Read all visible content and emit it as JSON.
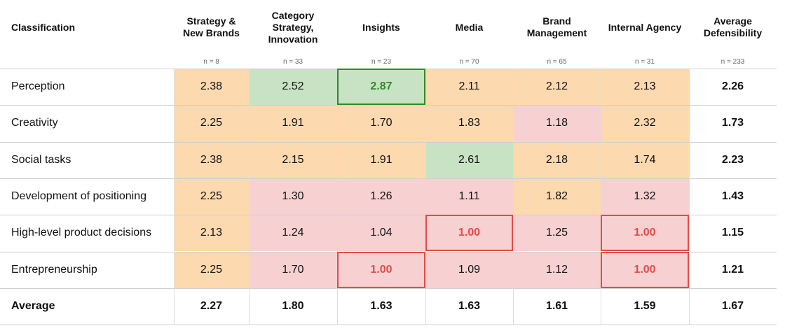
{
  "chart_data": {
    "type": "table",
    "corner_label": "Classification",
    "columns": [
      {
        "label": "Strategy &\nNew Brands",
        "n": "n = 8"
      },
      {
        "label": "Category\nStrategy,\nInnovation",
        "n": "n = 33"
      },
      {
        "label": "Insights",
        "n": "n = 23"
      },
      {
        "label": "Media",
        "n": "n = 70"
      },
      {
        "label": "Brand\nManagement",
        "n": "n = 65"
      },
      {
        "label": "Internal Agency",
        "n": "n = 31"
      },
      {
        "label": "Average\nDefensibility",
        "n": "n = 233"
      }
    ],
    "rows": [
      {
        "label": "Perception",
        "values": [
          "2.38",
          "2.52",
          "2.87",
          "2.11",
          "2.12",
          "2.13",
          "2.26"
        ]
      },
      {
        "label": "Creativity",
        "values": [
          "2.25",
          "1.91",
          "1.70",
          "1.83",
          "1.18",
          "2.32",
          "1.73"
        ]
      },
      {
        "label": "Social tasks",
        "values": [
          "2.38",
          "2.15",
          "1.91",
          "2.61",
          "2.18",
          "1.74",
          "2.23"
        ]
      },
      {
        "label": "Development of positioning",
        "values": [
          "2.25",
          "1.30",
          "1.26",
          "1.11",
          "1.82",
          "1.32",
          "1.43"
        ]
      },
      {
        "label": "High-level product decisions",
        "values": [
          "2.13",
          "1.24",
          "1.04",
          "1.00",
          "1.25",
          "1.00",
          "1.15"
        ]
      },
      {
        "label": "Entrepreneurship",
        "values": [
          "2.25",
          "1.70",
          "1.00",
          "1.09",
          "1.12",
          "1.00",
          "1.21"
        ]
      }
    ],
    "average_row": {
      "label": "Average",
      "values": [
        "2.27",
        "1.80",
        "1.63",
        "1.63",
        "1.61",
        "1.59",
        "1.67"
      ]
    },
    "cell_colors": [
      [
        "orange",
        "green",
        "green",
        "orange",
        "orange",
        "orange"
      ],
      [
        "orange",
        "orange",
        "orange",
        "orange",
        "red",
        "orange"
      ],
      [
        "orange",
        "orange",
        "orange",
        "green",
        "orange",
        "orange"
      ],
      [
        "orange",
        "red",
        "red",
        "red",
        "orange",
        "red"
      ],
      [
        "orange",
        "red",
        "red",
        "red",
        "red",
        "red"
      ],
      [
        "orange",
        "red",
        "red",
        "red",
        "red",
        "red"
      ]
    ],
    "highlighted_cells": [
      {
        "row": 0,
        "col": 2,
        "style": "max"
      },
      {
        "row": 4,
        "col": 3,
        "style": "min"
      },
      {
        "row": 4,
        "col": 5,
        "style": "min"
      },
      {
        "row": 5,
        "col": 2,
        "style": "min"
      },
      {
        "row": 5,
        "col": 5,
        "style": "min"
      }
    ],
    "colors": {
      "orange": "#fdd9b0",
      "green": "#c8e3c4",
      "red": "#f7d1d1",
      "max_outline": "#2f8a2a",
      "max_text": "#2f8a2a",
      "min_outline": "#e14b4b",
      "min_text": "#e14b4b"
    }
  }
}
